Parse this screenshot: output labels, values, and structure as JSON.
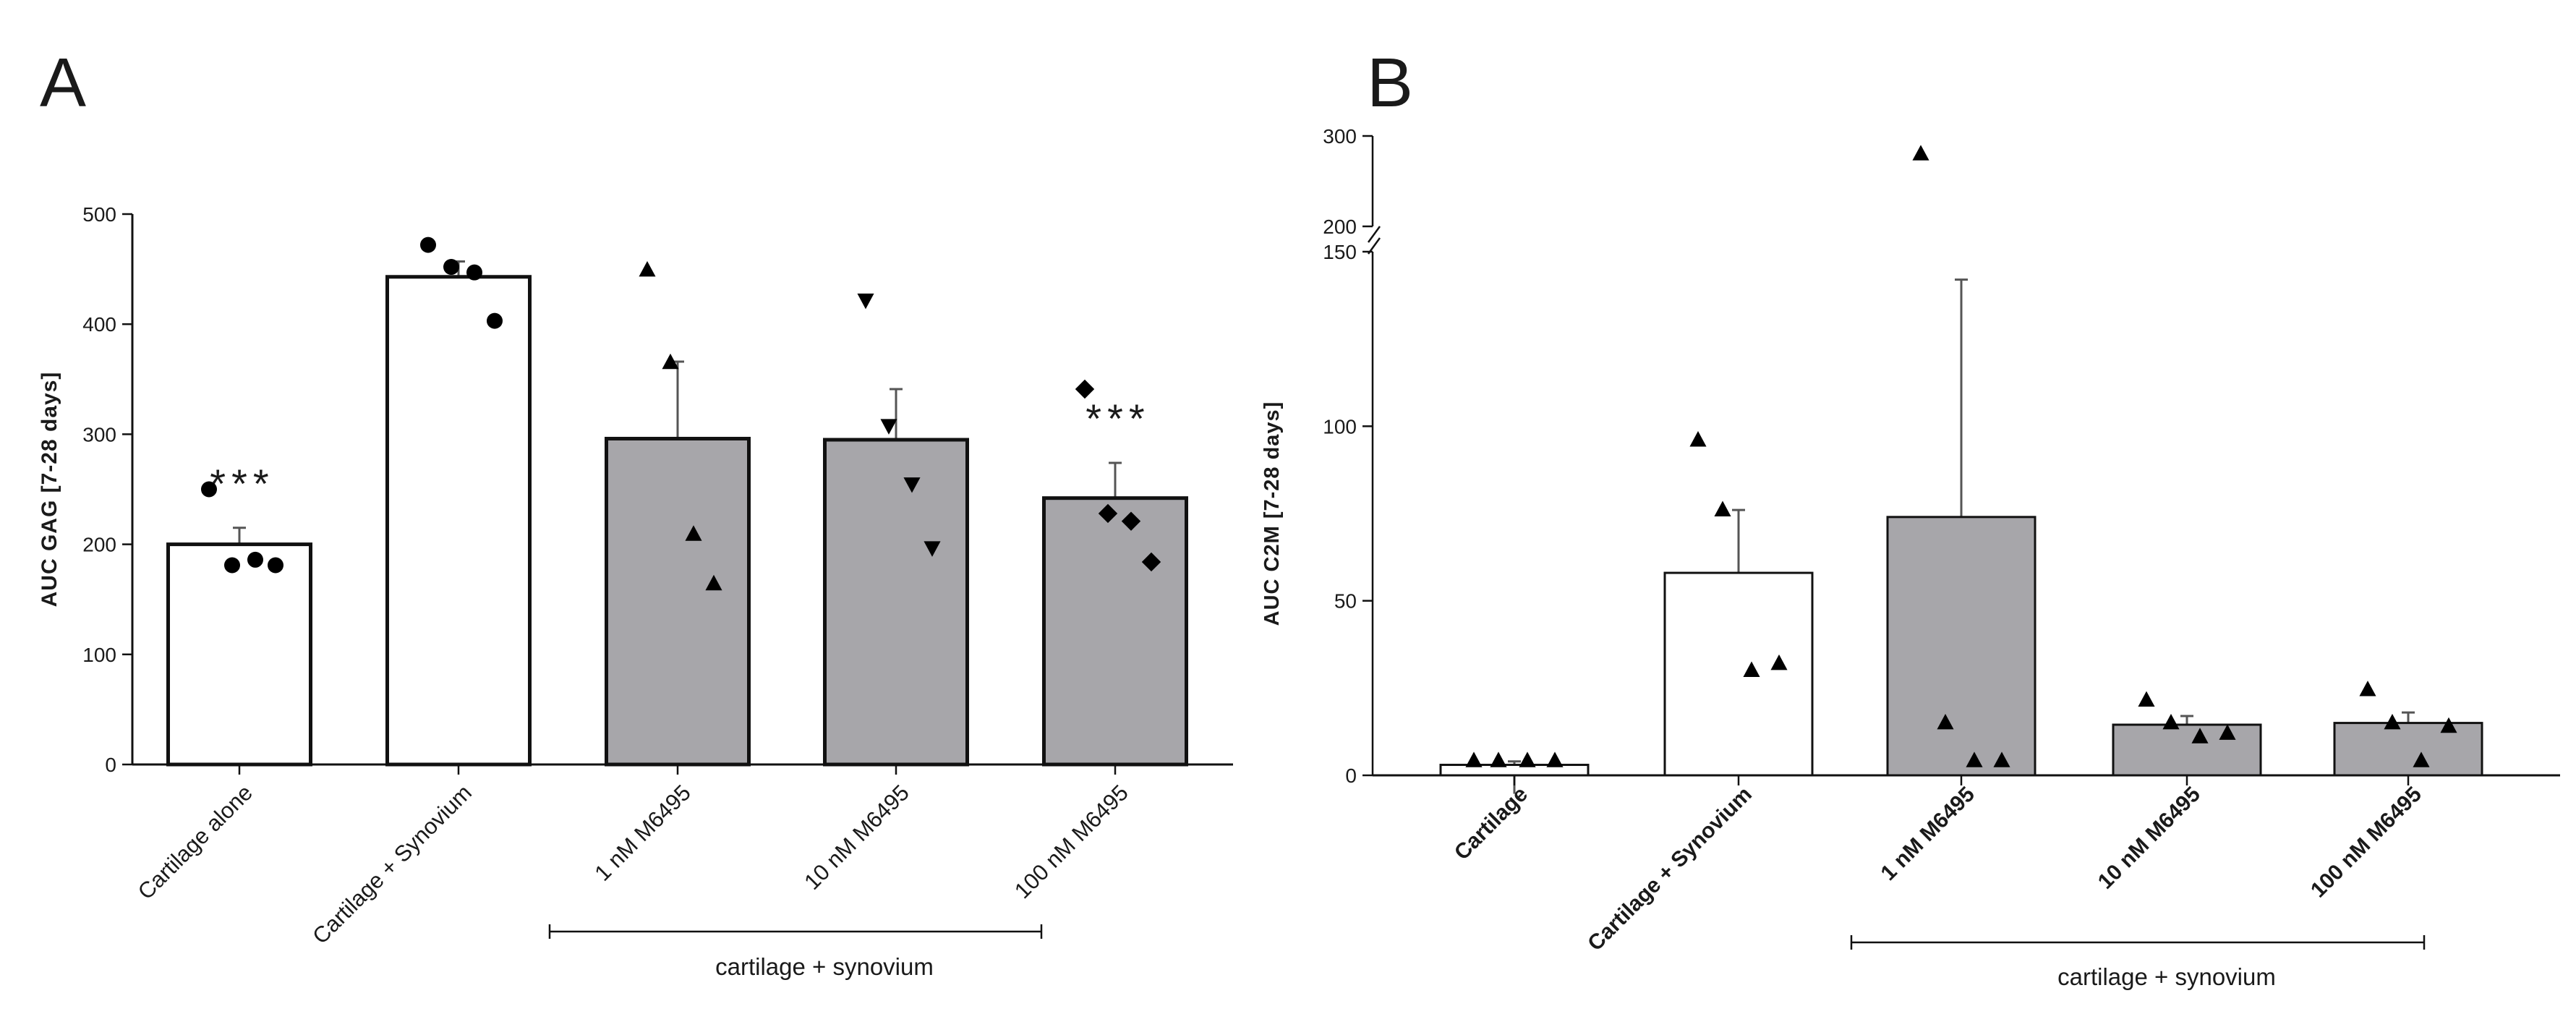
{
  "chart_data": [
    {
      "type": "bar",
      "panel": "A",
      "title": "",
      "xlabel": "",
      "ylabel": "AUC GAG [7-28 days]",
      "ylim": [
        0,
        500
      ],
      "yticks": [
        0,
        100,
        200,
        300,
        400,
        500
      ],
      "grid": false,
      "categories": [
        "Cartilage alone",
        "Cartilage + Synovium",
        "1 nM M6495",
        "10 nM M6495",
        "100 nM M6495"
      ],
      "values": [
        200,
        443,
        296,
        295,
        242
      ],
      "sem": [
        15,
        14,
        70,
        46,
        32
      ],
      "fill": [
        "#ffffff",
        "#ffffff",
        "#a7a6aa",
        "#a7a6aa",
        "#a7a6aa"
      ],
      "markers": [
        "circle",
        "circle",
        "triangle-up",
        "triangle-down",
        "diamond"
      ],
      "points": [
        [
          250,
          181,
          186,
          181
        ],
        [
          472,
          452,
          447,
          403
        ],
        [
          449,
          365,
          209,
          164
        ],
        [
          422,
          308,
          255,
          197
        ],
        [
          341,
          228,
          221,
          184
        ]
      ],
      "significance": [
        "***",
        "",
        "",
        "",
        "***"
      ],
      "group_label": "cartilage + synovium"
    },
    {
      "type": "bar",
      "panel": "B",
      "title": "",
      "xlabel": "",
      "ylabel": "AUC C2M [7-28 days]",
      "ylim": [
        0,
        300
      ],
      "axis_break": [
        150,
        200
      ],
      "yticks": [
        0,
        50,
        100,
        150,
        200,
        300
      ],
      "grid": false,
      "categories": [
        "Cartilage",
        "Cartilage + Synovium",
        "1 nM M6495",
        "10 nM M6495",
        "100 nM M6495"
      ],
      "values": [
        3,
        58,
        74,
        14.5,
        15
      ],
      "sem": [
        1,
        18,
        68,
        2.5,
        3
      ],
      "fill": [
        "#ffffff",
        "#ffffff",
        "#a7a6aa",
        "#a7a6aa",
        "#a7a6aa"
      ],
      "markers": [
        "triangle-up",
        "triangle-up",
        "triangle-up",
        "triangle-up",
        "triangle-up"
      ],
      "points": [
        [
          2,
          6,
          2,
          2.5
        ],
        [
          96,
          76,
          30,
          32
        ],
        [
          280,
          15,
          2,
          2
        ],
        [
          21.5,
          15,
          11,
          12
        ],
        [
          24.5,
          15,
          6.5,
          14
        ]
      ],
      "significance": [
        "",
        "",
        "",
        "",
        ""
      ],
      "group_label": "cartilage + synovium"
    }
  ]
}
